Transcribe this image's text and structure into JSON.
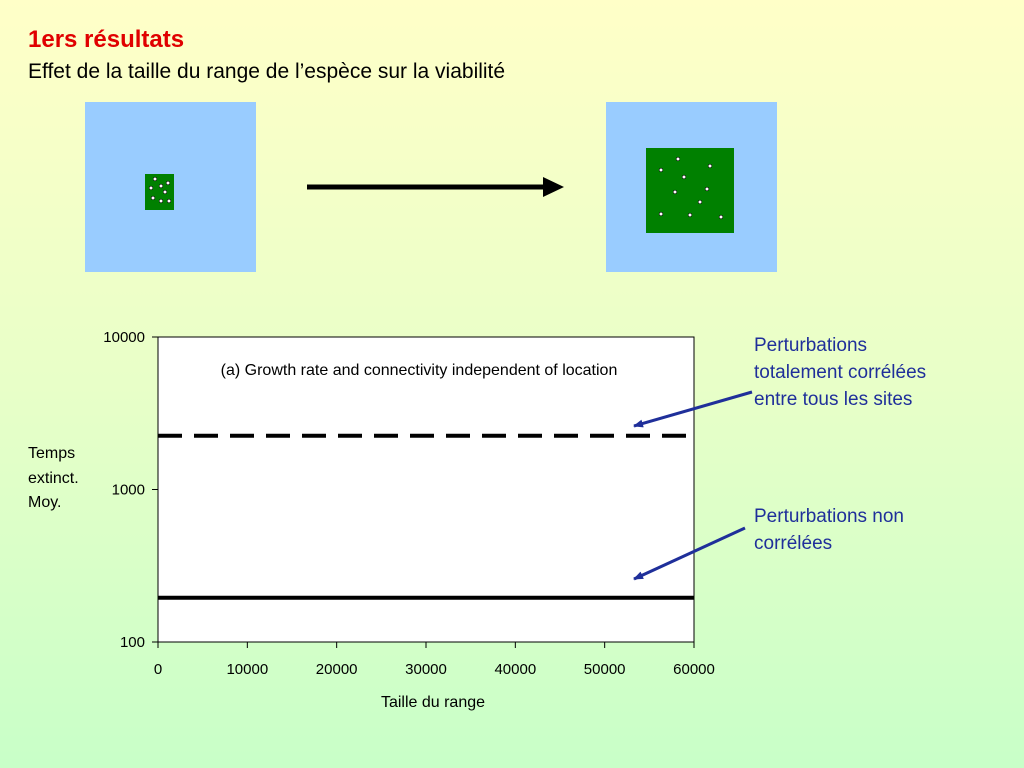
{
  "slide": {
    "title": "1ers résultats",
    "subtitle": "Effet de la taille du range de l’espèce sur la viabilité",
    "annotations": {
      "correlated": [
        "Perturbations",
        "totalement corrélées",
        "entre tous les sites"
      ],
      "uncorrelated": [
        "Perturbations non",
        "corrélées"
      ]
    },
    "colors": {
      "title": "#E00000",
      "annotation": "#1F2F9A",
      "landscape": "#99CCFF",
      "habitat": "#008000"
    }
  },
  "chart_data": {
    "type": "line",
    "title": "(a) Growth rate and connectivity independent of location",
    "xlabel": "Taille du range",
    "ylabel": [
      "Temps",
      "extinct.",
      "Moy."
    ],
    "xlim": [
      0,
      60000
    ],
    "ylim": [
      100,
      10000
    ],
    "yscale": "log",
    "xticks": [
      0,
      10000,
      20000,
      30000,
      40000,
      50000,
      60000
    ],
    "yticks": [
      100,
      1000,
      10000
    ],
    "grid": false,
    "legend": "none",
    "series": [
      {
        "style": "dashed",
        "x": [
          0,
          60000
        ],
        "y": [
          2250,
          2250
        ]
      },
      {
        "style": "solid",
        "x": [
          0,
          60000
        ],
        "y": [
          195,
          195
        ]
      }
    ]
  }
}
